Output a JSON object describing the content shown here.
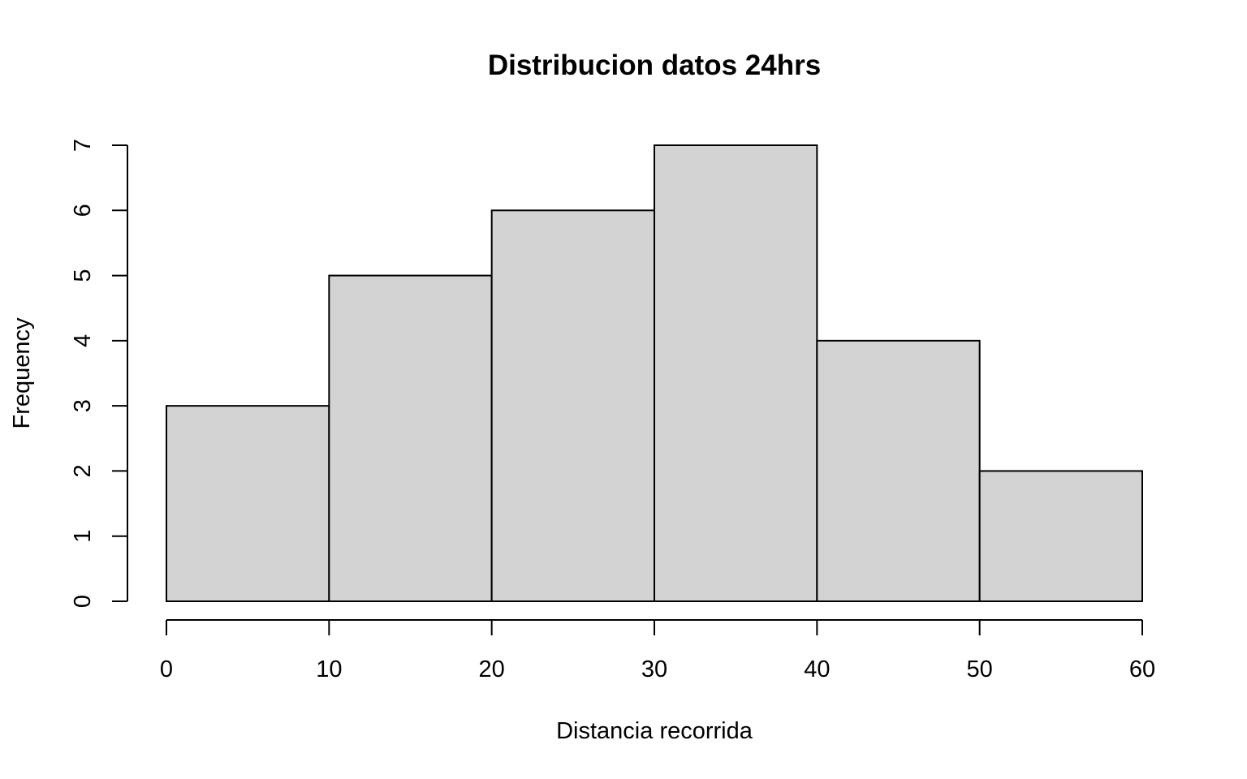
{
  "chart_data": {
    "type": "bar",
    "title": "Distribucion datos 24hrs",
    "xlabel": "Distancia recorrida",
    "ylabel": "Frequency",
    "bins": [
      {
        "start": 0,
        "end": 10,
        "count": 3
      },
      {
        "start": 10,
        "end": 20,
        "count": 5
      },
      {
        "start": 20,
        "end": 30,
        "count": 6
      },
      {
        "start": 30,
        "end": 40,
        "count": 7
      },
      {
        "start": 40,
        "end": 50,
        "count": 4
      },
      {
        "start": 50,
        "end": 60,
        "count": 2
      }
    ],
    "xlim": [
      0,
      60
    ],
    "ylim": [
      0,
      7
    ],
    "x_ticks": [
      0,
      10,
      20,
      30,
      40,
      50,
      60
    ],
    "y_ticks": [
      0,
      1,
      2,
      3,
      4,
      5,
      6,
      7
    ],
    "bar_color": "#d3d3d3",
    "grid": false,
    "legend": "none"
  }
}
